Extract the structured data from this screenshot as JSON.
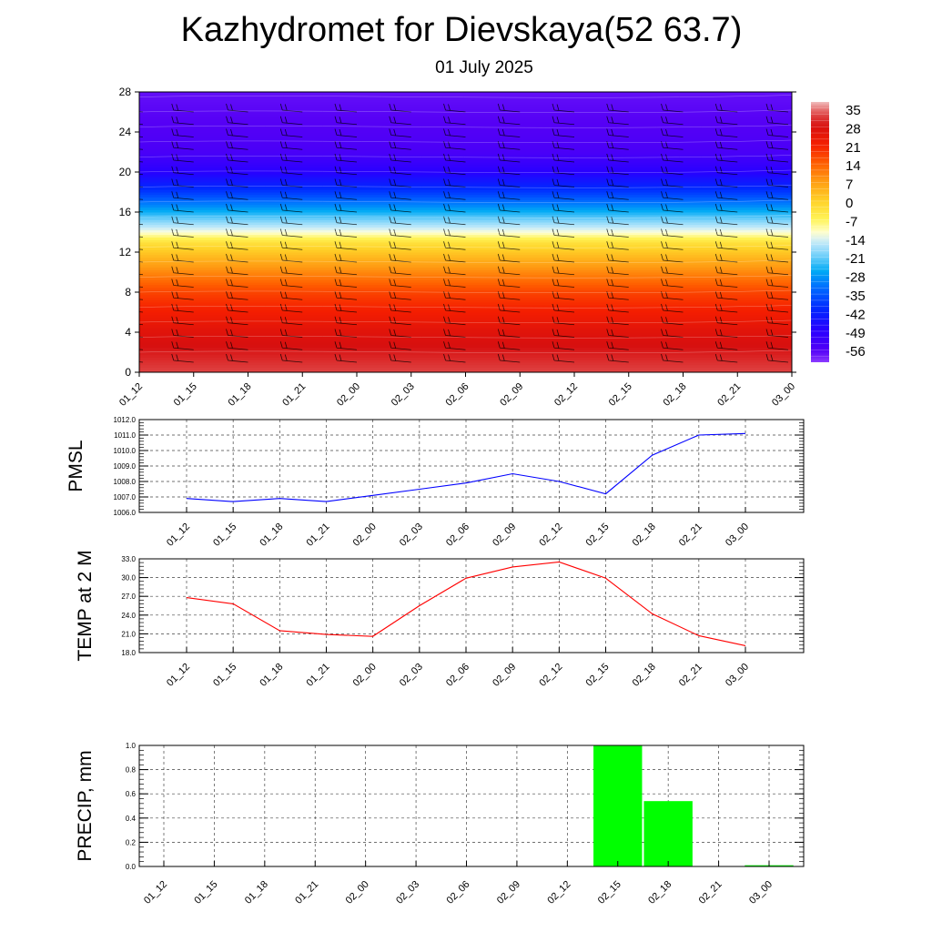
{
  "title": "Kazhydromet for Dievskaya(52 63.7)",
  "date": "01 July 2025",
  "chart_data": [
    {
      "type": "heatmap",
      "title": "",
      "xlabel": "",
      "ylabel": "",
      "x": [
        "01_12",
        "01_15",
        "01_18",
        "01_21",
        "02_00",
        "02_03",
        "02_06",
        "02_09",
        "02_12",
        "02_15",
        "02_18",
        "02_21",
        "03_00"
      ],
      "y_ticks": [
        0,
        4,
        8,
        12,
        16,
        20,
        24,
        28
      ],
      "ylim": [
        0,
        28
      ],
      "colorbar_labels": [
        "35",
        "28",
        "21",
        "14",
        "7",
        "0",
        "-7",
        "-14",
        "-21",
        "-28",
        "-35",
        "-42",
        "-49",
        "-56"
      ],
      "colorbar_range": [
        -60,
        37
      ],
      "temperature_profile": [
        {
          "y": 0,
          "value": 32
        },
        {
          "y": 4,
          "value": 26
        },
        {
          "y": 8,
          "value": 17
        },
        {
          "y": 11,
          "value": 6
        },
        {
          "y": 13,
          "value": -3
        },
        {
          "y": 14,
          "value": -12
        },
        {
          "y": 16,
          "value": -25
        },
        {
          "y": 18,
          "value": -38
        },
        {
          "y": 20,
          "value": -48
        },
        {
          "y": 22,
          "value": -54
        },
        {
          "y": 25,
          "value": -56
        },
        {
          "y": 28,
          "value": -57
        }
      ],
      "overlay": "wind barbs"
    },
    {
      "type": "line",
      "ylabel": "PMSL",
      "x": [
        "01_12",
        "01_15",
        "01_18",
        "01_21",
        "02_00",
        "02_03",
        "02_06",
        "02_09",
        "02_12",
        "02_15",
        "02_18",
        "02_21",
        "03_00"
      ],
      "series": [
        {
          "values": [
            1006.9,
            1006.7,
            1006.9,
            1006.7,
            1007.1,
            1007.5,
            1007.9,
            1008.5,
            1008.0,
            1007.2,
            1009.7,
            1011.0,
            1011.1
          ],
          "color": "#0000ff"
        }
      ],
      "y_ticks": [
        "1006.0",
        "1007.0",
        "1008.0",
        "1009.0",
        "1010.0",
        "1011.0",
        "1012.0"
      ],
      "ylim": [
        1006.0,
        1012.0
      ],
      "grid": true
    },
    {
      "type": "line",
      "ylabel": "TEMP at 2 M",
      "x": [
        "01_12",
        "01_15",
        "01_18",
        "01_21",
        "02_00",
        "02_03",
        "02_06",
        "02_09",
        "02_12",
        "02_15",
        "02_18",
        "02_21",
        "03_00"
      ],
      "series": [
        {
          "values": [
            26.8,
            25.8,
            21.5,
            20.9,
            20.6,
            25.5,
            29.9,
            31.7,
            32.5,
            29.9,
            24.2,
            20.7,
            19.1
          ],
          "color": "#ff0000"
        }
      ],
      "y_ticks": [
        "18.0",
        "21.0",
        "24.0",
        "27.0",
        "30.0",
        "33.0"
      ],
      "ylim": [
        18.0,
        33.0
      ],
      "grid": true
    },
    {
      "type": "bar",
      "ylabel": "PRECIP, mm",
      "categories": [
        "01_12",
        "01_15",
        "01_18",
        "01_21",
        "02_00",
        "02_03",
        "02_06",
        "02_09",
        "02_12",
        "02_15",
        "02_18",
        "02_21",
        "03_00"
      ],
      "values": [
        0,
        0,
        0,
        0,
        0,
        0,
        0,
        0,
        0,
        1.0,
        0.54,
        0,
        0.01
      ],
      "color": "#00ff00",
      "y_ticks": [
        "0.0",
        "0.2",
        "0.4",
        "0.6",
        "0.8",
        "1.0"
      ],
      "ylim": [
        0,
        1.0
      ],
      "grid": true
    }
  ]
}
